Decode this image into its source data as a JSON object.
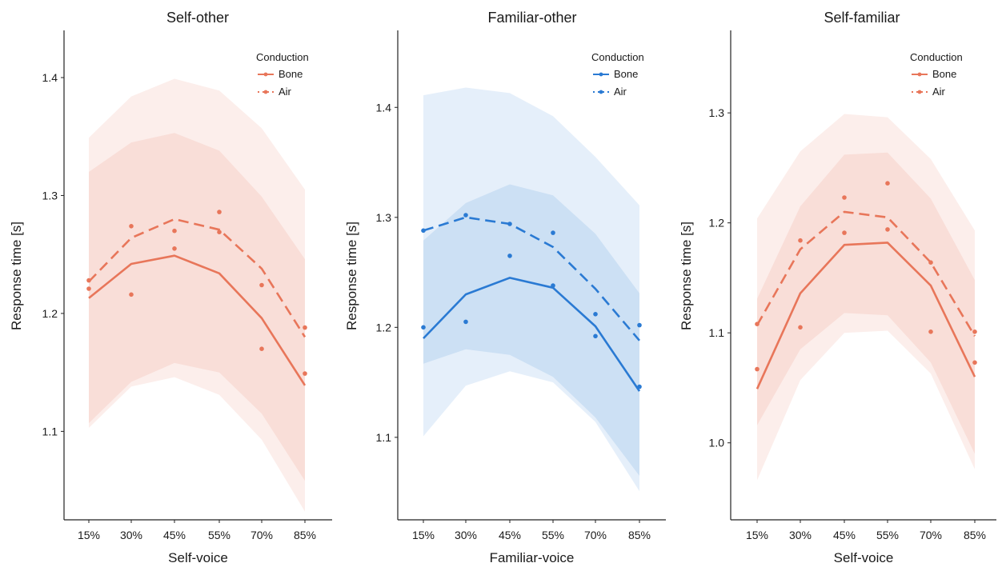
{
  "chart_data": [
    {
      "type": "line",
      "title": "Self-other",
      "xlabel": "Self-voice",
      "ylabel": "Response time [s]",
      "categories": [
        "15%",
        "30%",
        "45%",
        "55%",
        "70%",
        "85%"
      ],
      "ylim": [
        1.025,
        1.44
      ],
      "yticks": [
        "1.1",
        "1.2",
        "1.3",
        "1.4"
      ],
      "legend": {
        "title": "Conduction",
        "placement": "top-right",
        "entries": [
          "Bone",
          "Air"
        ]
      },
      "color": "#e8765a",
      "series": [
        {
          "name": "Bone",
          "linestyle": "solid",
          "values": [
            1.213,
            1.242,
            1.249,
            1.234,
            1.196,
            1.139
          ],
          "points": [
            1.221,
            1.216,
            1.255,
            1.269,
            1.17,
            1.149
          ],
          "band_inner": [
            [
              1.107,
              1.32
            ],
            [
              1.142,
              1.345
            ],
            [
              1.158,
              1.353
            ],
            [
              1.15,
              1.338
            ],
            [
              1.115,
              1.299
            ],
            [
              1.058,
              1.246
            ]
          ],
          "band_outer": [
            [
              1.103,
              1.349
            ],
            [
              1.138,
              1.384
            ],
            [
              1.146,
              1.399
            ],
            [
              1.131,
              1.389
            ],
            [
              1.093,
              1.357
            ],
            [
              1.032,
              1.305
            ]
          ]
        },
        {
          "name": "Air",
          "linestyle": "dashed",
          "values": [
            1.227,
            1.264,
            1.28,
            1.271,
            1.238,
            1.18
          ],
          "points": [
            1.228,
            1.274,
            1.27,
            1.286,
            1.224,
            1.188
          ]
        }
      ]
    },
    {
      "type": "line",
      "title": "Familiar-other",
      "xlabel": "Familiar-voice",
      "ylabel": "Response time [s]",
      "categories": [
        "15%",
        "30%",
        "45%",
        "55%",
        "70%",
        "85%"
      ],
      "ylim": [
        1.025,
        1.47
      ],
      "yticks": [
        "1.1",
        "1.2",
        "1.3",
        "1.4"
      ],
      "legend": {
        "title": "Conduction",
        "placement": "top-right",
        "entries": [
          "Bone",
          "Air"
        ]
      },
      "color": "#2a7ad3",
      "series": [
        {
          "name": "Bone",
          "linestyle": "solid",
          "values": [
            1.19,
            1.23,
            1.245,
            1.236,
            1.201,
            1.142
          ],
          "points": [
            1.2,
            1.205,
            1.265,
            1.238,
            1.192,
            1.146
          ],
          "band_inner": [
            [
              1.167,
              1.279
            ],
            [
              1.18,
              1.313
            ],
            [
              1.175,
              1.33
            ],
            [
              1.155,
              1.32
            ],
            [
              1.118,
              1.285
            ],
            [
              1.065,
              1.231
            ]
          ],
          "band_outer": [
            [
              1.101,
              1.411
            ],
            [
              1.147,
              1.418
            ],
            [
              1.16,
              1.413
            ],
            [
              1.15,
              1.392
            ],
            [
              1.114,
              1.355
            ],
            [
              1.051,
              1.311
            ]
          ]
        },
        {
          "name": "Air",
          "linestyle": "dashed",
          "values": [
            1.288,
            1.3,
            1.294,
            1.273,
            1.235,
            1.188
          ],
          "points": [
            1.288,
            1.302,
            1.294,
            1.286,
            1.212,
            1.202
          ]
        }
      ]
    },
    {
      "type": "line",
      "title": "Self-familiar",
      "xlabel": "Self-voice",
      "ylabel": "Response time [s]",
      "categories": [
        "15%",
        "30%",
        "45%",
        "55%",
        "70%",
        "85%"
      ],
      "ylim": [
        0.93,
        1.375
      ],
      "yticks": [
        "1.0",
        "1.1",
        "1.2",
        "1.3"
      ],
      "legend": {
        "title": "Conduction",
        "placement": "top-right",
        "entries": [
          "Bone",
          "Air"
        ]
      },
      "color": "#e8765a",
      "series": [
        {
          "name": "Bone",
          "linestyle": "solid",
          "values": [
            1.049,
            1.136,
            1.18,
            1.182,
            1.143,
            1.06
          ],
          "points": [
            1.067,
            1.105,
            1.191,
            1.194,
            1.101,
            1.073
          ],
          "band_inner": [
            [
              1.016,
              1.131
            ],
            [
              1.085,
              1.215
            ],
            [
              1.118,
              1.262
            ],
            [
              1.116,
              1.264
            ],
            [
              1.073,
              1.222
            ],
            [
              0.99,
              1.148
            ]
          ],
          "band_outer": [
            [
              0.966,
              1.204
            ],
            [
              1.057,
              1.265
            ],
            [
              1.1,
              1.299
            ],
            [
              1.102,
              1.296
            ],
            [
              1.063,
              1.258
            ],
            [
              0.976,
              1.193
            ]
          ]
        },
        {
          "name": "Air",
          "linestyle": "dashed",
          "values": [
            1.107,
            1.176,
            1.21,
            1.205,
            1.164,
            1.097
          ],
          "points": [
            1.108,
            1.184,
            1.223,
            1.236,
            1.164,
            1.101
          ]
        }
      ]
    }
  ]
}
